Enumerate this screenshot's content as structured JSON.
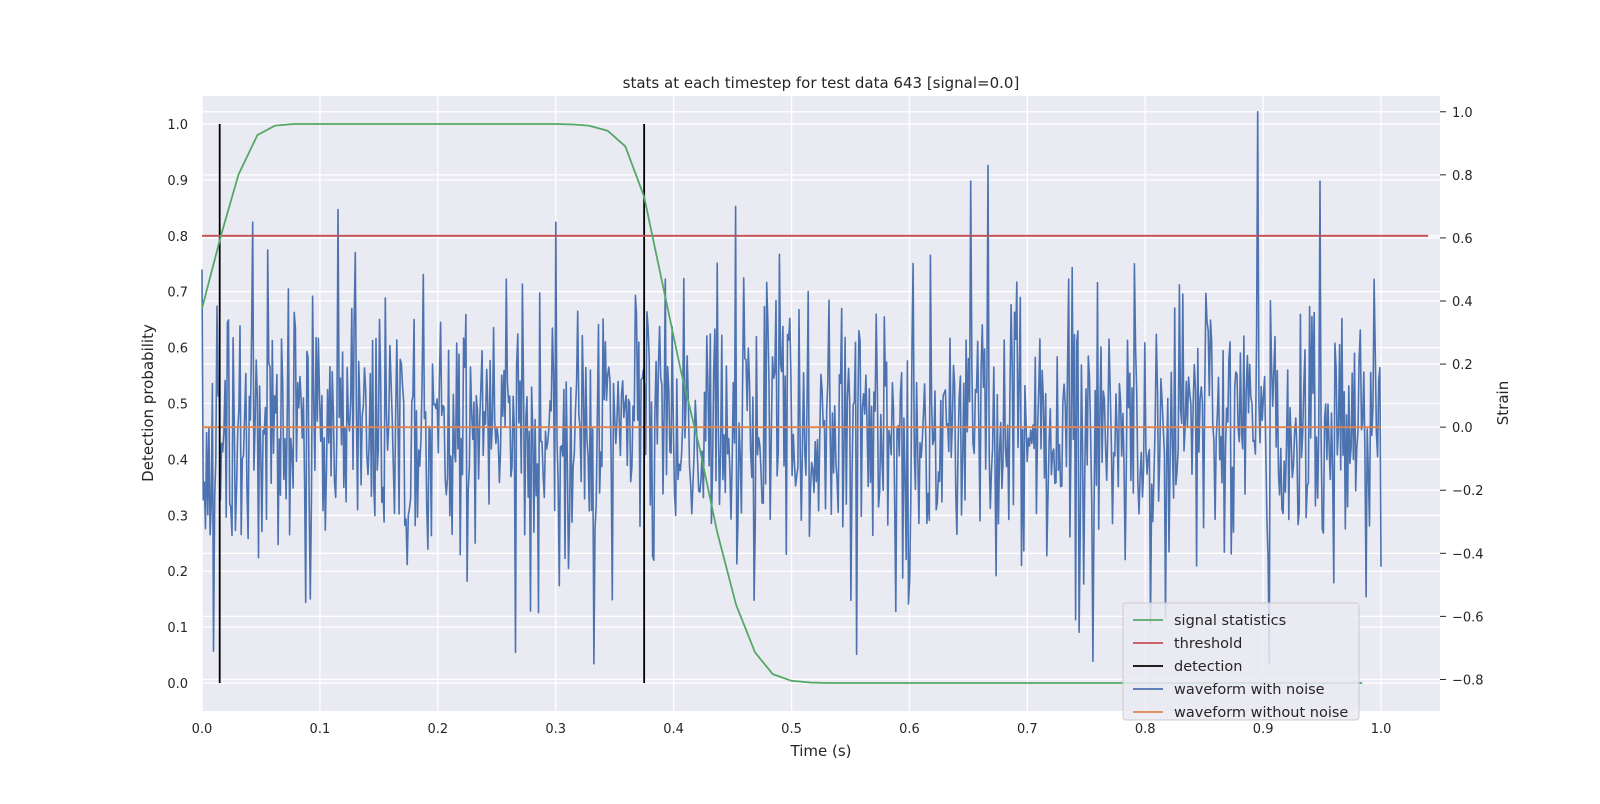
{
  "chart_data": {
    "type": "line",
    "title": "stats at each timestep for test data 643 [signal=0.0]",
    "xlabel": "Time (s)",
    "ylabel_left": "Detection probability",
    "ylabel_right": "Strain",
    "xlim": [
      0.0,
      1.05
    ],
    "ylim_left": [
      -0.05,
      1.05
    ],
    "ylim_right": [
      -0.9,
      1.05
    ],
    "x_ticks": [
      0.0,
      0.1,
      0.2,
      0.3,
      0.4,
      0.5,
      0.6,
      0.7,
      0.8,
      0.9,
      1.0
    ],
    "x_tick_labels": [
      "0.0",
      "0.1",
      "0.2",
      "0.3",
      "0.4",
      "0.5",
      "0.6",
      "0.7",
      "0.8",
      "0.9",
      "1.0"
    ],
    "y_left_ticks": [
      0.0,
      0.1,
      0.2,
      0.3,
      0.4,
      0.5,
      0.6,
      0.7,
      0.8,
      0.9,
      1.0
    ],
    "y_left_tick_labels": [
      "0.0",
      "0.1",
      "0.2",
      "0.3",
      "0.4",
      "0.5",
      "0.6",
      "0.7",
      "0.8",
      "0.9",
      "1.0"
    ],
    "y_right_ticks": [
      -0.8,
      -0.6,
      -0.4,
      -0.2,
      0.0,
      0.2,
      0.4,
      0.6,
      0.8,
      1.0
    ],
    "y_right_tick_labels": [
      "−0.8",
      "−0.6",
      "−0.4",
      "−0.2",
      "0.0",
      "0.2",
      "0.4",
      "0.6",
      "0.8",
      "1.0"
    ],
    "grid": true,
    "legend_position": "bottom-right",
    "legend": [
      {
        "label": "signal statistics",
        "color": "#55a868"
      },
      {
        "label": "threshold",
        "color": "#c44e52"
      },
      {
        "label": "detection",
        "color": "#000000"
      },
      {
        "label": "waveform with noise",
        "color": "#4c72b0"
      },
      {
        "label": "waveform without noise",
        "color": "#dd8452"
      }
    ],
    "series": [
      {
        "name": "signal statistics",
        "axis": "left",
        "color": "#55a868",
        "x": [
          0.0,
          0.016,
          0.031,
          0.047,
          0.062,
          0.078,
          0.1,
          0.15,
          0.2,
          0.25,
          0.3,
          0.315,
          0.328,
          0.344,
          0.359,
          0.375,
          0.39,
          0.406,
          0.422,
          0.437,
          0.453,
          0.469,
          0.484,
          0.5,
          0.516,
          0.531,
          0.6,
          0.7,
          0.8,
          0.9,
          0.984
        ],
        "y": [
          0.67,
          0.8,
          0.91,
          0.98,
          0.997,
          1.0,
          1.0,
          1.0,
          1.0,
          1.0,
          1.0,
          0.999,
          0.997,
          0.988,
          0.96,
          0.87,
          0.72,
          0.56,
          0.42,
          0.27,
          0.14,
          0.055,
          0.016,
          0.004,
          0.001,
          0.0,
          0.0,
          0.0,
          0.0,
          0.0,
          0.0
        ]
      },
      {
        "name": "threshold",
        "axis": "left",
        "color": "#c44e52",
        "x": [
          0.0,
          1.04
        ],
        "y": [
          0.8,
          0.8
        ]
      },
      {
        "name": "waveform without noise",
        "axis": "right",
        "color": "#dd8452",
        "x": [
          0.0,
          1.0
        ],
        "y": [
          0.0,
          0.0
        ]
      }
    ],
    "detections": [
      0.015,
      0.375
    ],
    "noise_waveform": {
      "name": "waveform with noise",
      "axis": "right",
      "color": "#4c72b0",
      "x_range": [
        0.0,
        1.0
      ],
      "n_points": 1024,
      "sigma": 0.22,
      "peak_values": [
        {
          "x": 0.0,
          "y": 0.5
        },
        {
          "x": 0.01,
          "y": -0.71
        },
        {
          "x": 0.043,
          "y": 0.65
        },
        {
          "x": 0.115,
          "y": 0.69
        },
        {
          "x": 0.3,
          "y": 0.65
        },
        {
          "x": 0.332,
          "y": -0.75
        },
        {
          "x": 0.453,
          "y": 0.7
        },
        {
          "x": 0.555,
          "y": -0.72
        },
        {
          "x": 0.667,
          "y": 0.83
        },
        {
          "x": 0.895,
          "y": 1.0
        },
        {
          "x": 0.948,
          "y": 0.78
        },
        {
          "x": 0.905,
          "y": -0.75
        }
      ]
    }
  }
}
